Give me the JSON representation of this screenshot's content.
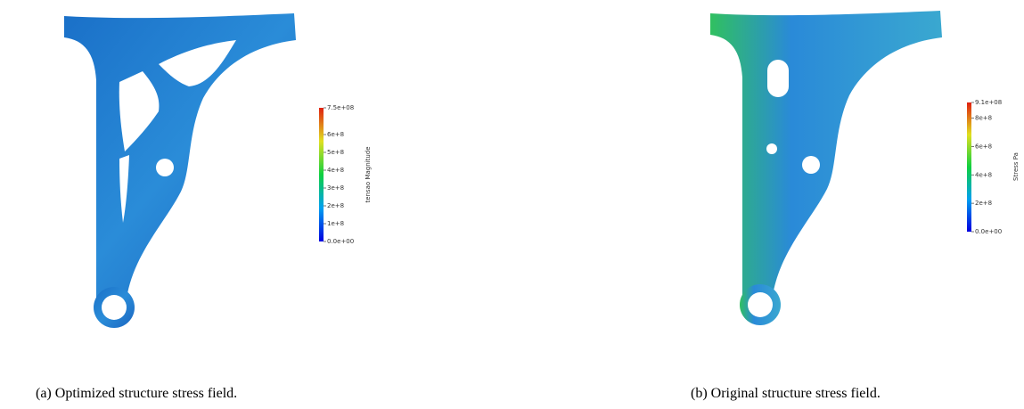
{
  "panels": [
    {
      "caption": "(a) Optimized structure stress field.",
      "colorbar": {
        "title": "tensao Magnitude",
        "range": [
          0,
          750000000
        ],
        "ticks": [
          {
            "value": 0,
            "label": "0.0e+00"
          },
          {
            "value": 100000000,
            "label": "1e+8"
          },
          {
            "value": 200000000,
            "label": "2e+8"
          },
          {
            "value": 300000000,
            "label": "3e+8"
          },
          {
            "value": 400000000,
            "label": "4e+8"
          },
          {
            "value": 500000000,
            "label": "5e+8"
          },
          {
            "value": 600000000,
            "label": "6e+8"
          },
          {
            "value": 750000000,
            "label": "7.5e+08"
          }
        ]
      }
    },
    {
      "caption": "(b) Original structure stress field.",
      "colorbar": {
        "title": "Stress Pa",
        "range": [
          0,
          910000000
        ],
        "ticks": [
          {
            "value": 0,
            "label": "0.0e+00"
          },
          {
            "value": 200000000,
            "label": "2e+8"
          },
          {
            "value": 400000000,
            "label": "4e+8"
          },
          {
            "value": 600000000,
            "label": "6e+8"
          },
          {
            "value": 800000000,
            "label": "8e+8"
          },
          {
            "value": 910000000,
            "label": "9.1e+08"
          }
        ]
      }
    }
  ]
}
